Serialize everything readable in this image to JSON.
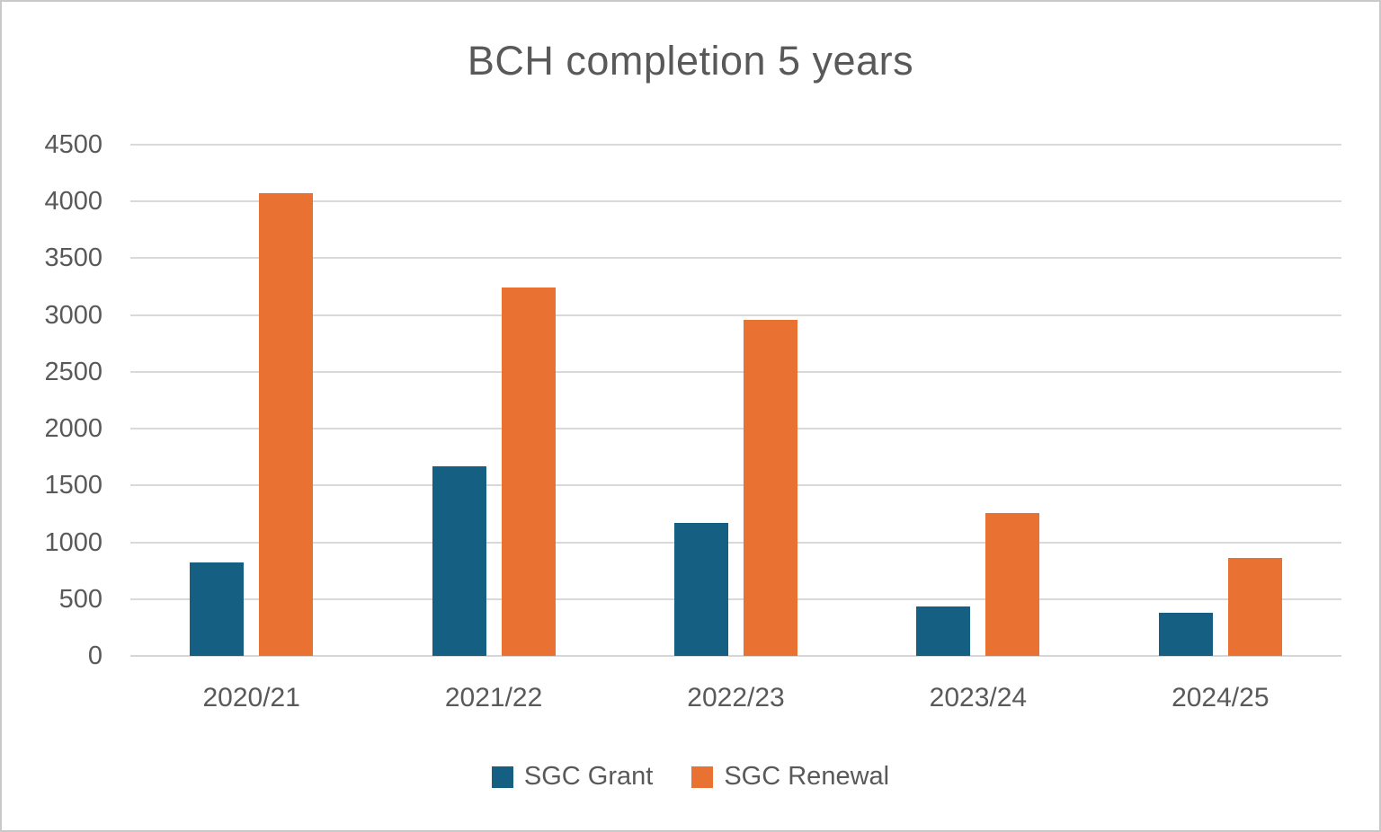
{
  "chart_data": {
    "type": "bar",
    "title": "BCH completion 5 years",
    "categories": [
      "2020/21",
      "2021/22",
      "2022/23",
      "2023/24",
      "2024/25"
    ],
    "series": [
      {
        "name": "SGC Grant",
        "color": "#156082",
        "values": [
          825,
          1665,
          1170,
          435,
          380
        ]
      },
      {
        "name": "SGC Renewal",
        "color": "#E97132",
        "values": [
          4070,
          3240,
          2960,
          1255,
          865
        ]
      }
    ],
    "xlabel": "",
    "ylabel": "",
    "ylim": [
      0,
      4500
    ],
    "ytick_step": 500,
    "yticks": [
      "0",
      "500",
      "1000",
      "1500",
      "2000",
      "2500",
      "3000",
      "3500",
      "4000",
      "4500"
    ],
    "grid": true,
    "legend_position": "bottom"
  },
  "styles": {
    "grid_color": "#d9d9d9",
    "text_color": "#595959",
    "background_color": "#ffffff",
    "border_color": "#c9c9c9"
  }
}
